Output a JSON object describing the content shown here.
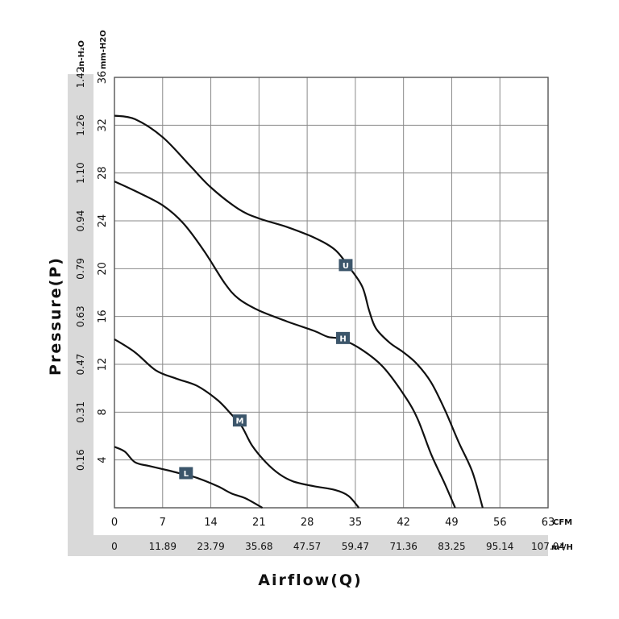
{
  "chart_data": {
    "type": "line",
    "title": "",
    "xlabel": "Airflow(Q)",
    "ylabel": "Pressure(P)",
    "x_unit": "CFM",
    "x2_unit": "m³/H",
    "y_unit": "mm-H2O",
    "y2_unit": "in-H₂O",
    "xlim": [
      0,
      63
    ],
    "ylim": [
      0,
      36
    ],
    "x_ticks": [
      0,
      7,
      14,
      21,
      28,
      35,
      42,
      49,
      56,
      63
    ],
    "x2_tick_labels": [
      "0",
      "11.89",
      "23.79",
      "35.68",
      "47.57",
      "59.47",
      "71.36",
      "83.25",
      "95.14",
      "107.04"
    ],
    "y_ticks": [
      4,
      8,
      12,
      16,
      20,
      24,
      28,
      32,
      36
    ],
    "y2_tick_labels": [
      "0.16",
      "0.31",
      "0.47",
      "0.63",
      "0.79",
      "0.94",
      "1.10",
      "1.26",
      "1.42"
    ],
    "grid": true,
    "series": [
      {
        "name": "U",
        "points": [
          [
            0,
            32.8
          ],
          [
            3,
            32.5
          ],
          [
            7,
            31
          ],
          [
            11,
            28.6
          ],
          [
            14,
            26.8
          ],
          [
            18,
            25
          ],
          [
            21,
            24.2
          ],
          [
            25,
            23.5
          ],
          [
            29,
            22.6
          ],
          [
            32,
            21.6
          ],
          [
            34,
            20.2
          ],
          [
            36,
            18.5
          ],
          [
            37,
            16.5
          ],
          [
            38,
            15
          ],
          [
            40,
            13.8
          ],
          [
            42,
            13
          ],
          [
            44,
            12
          ],
          [
            46,
            10.5
          ],
          [
            48,
            8.2
          ],
          [
            50,
            5.5
          ],
          [
            52,
            3
          ],
          [
            53.5,
            0
          ]
        ]
      },
      {
        "name": "H",
        "points": [
          [
            0,
            27.3
          ],
          [
            3,
            26.5
          ],
          [
            7,
            25.3
          ],
          [
            10,
            23.8
          ],
          [
            13,
            21.5
          ],
          [
            16,
            18.8
          ],
          [
            18,
            17.5
          ],
          [
            21,
            16.5
          ],
          [
            25,
            15.6
          ],
          [
            29,
            14.8
          ],
          [
            31,
            14.3
          ],
          [
            33,
            14.1
          ],
          [
            36,
            13.2
          ],
          [
            39,
            11.8
          ],
          [
            42,
            9.5
          ],
          [
            44,
            7.5
          ],
          [
            46,
            4.5
          ],
          [
            48,
            2
          ],
          [
            49.5,
            0
          ]
        ]
      },
      {
        "name": "M",
        "points": [
          [
            0,
            14.1
          ],
          [
            3,
            13
          ],
          [
            6,
            11.5
          ],
          [
            9,
            10.8
          ],
          [
            12,
            10.2
          ],
          [
            15,
            9
          ],
          [
            17,
            7.8
          ],
          [
            18.5,
            6.8
          ],
          [
            20,
            5.2
          ],
          [
            22,
            3.8
          ],
          [
            24,
            2.8
          ],
          [
            26,
            2.2
          ],
          [
            29,
            1.8
          ],
          [
            32,
            1.5
          ],
          [
            34,
            1
          ],
          [
            35.5,
            0
          ]
        ]
      },
      {
        "name": "L",
        "points": [
          [
            0,
            5.1
          ],
          [
            1.5,
            4.7
          ],
          [
            3,
            3.8
          ],
          [
            5,
            3.5
          ],
          [
            8,
            3.1
          ],
          [
            10,
            2.8
          ],
          [
            12,
            2.5
          ],
          [
            15,
            1.8
          ],
          [
            17,
            1.2
          ],
          [
            19,
            0.8
          ],
          [
            21.5,
            0
          ]
        ]
      }
    ],
    "annotations": [
      {
        "label": "U",
        "x": 33.6,
        "y": 20.3
      },
      {
        "label": "H",
        "x": 33.2,
        "y": 14.2
      },
      {
        "label": "M",
        "x": 18.2,
        "y": 7.3
      },
      {
        "label": "L",
        "x": 10.4,
        "y": 2.9
      }
    ]
  }
}
